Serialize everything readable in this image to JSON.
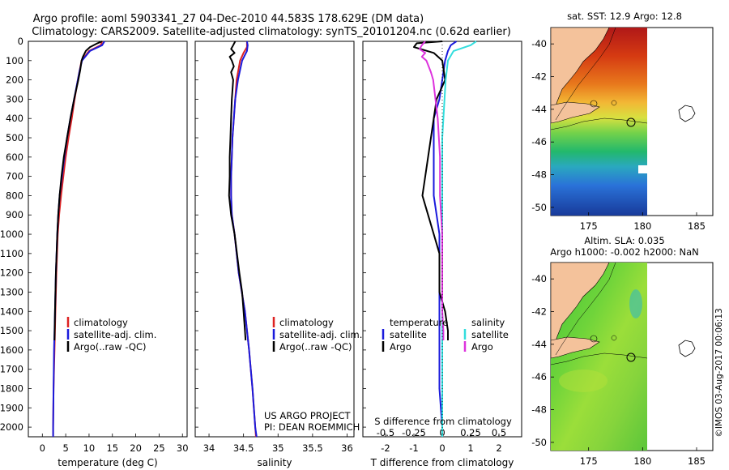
{
  "figure": {
    "title_line1": "Argo profile: aoml 5903341_27 04-Dec-2010 44.583S 178.629E (DM data)",
    "title_line2": "Climatology: CARS2009. Satellite-adjusted climatology: synTS_20101204.nc (0.62d earlier)",
    "project_line1": "US ARGO PROJECT",
    "project_line2": "PI: DEAN ROEMMICH",
    "credit": "©IMOS 03-Aug-2017 00:06:13"
  },
  "colors": {
    "climatology": "#dd2222",
    "satellite": "#1a1adc",
    "argo": "#000000",
    "temp_satellite": "#1a1adc",
    "sal_satellite": "#33dddd",
    "sal_argo": "#dd33dd",
    "land": "#f4c29b"
  },
  "chart_data": [
    {
      "type": "line",
      "id": "temperature",
      "xlabel": "temperature (deg C)",
      "ylabel": "",
      "xlim": [
        -3,
        31
      ],
      "ylim": [
        2050,
        0
      ],
      "xticks": [
        0,
        5,
        10,
        15,
        20,
        25,
        30
      ],
      "yticks": [
        0,
        100,
        200,
        300,
        400,
        500,
        600,
        700,
        800,
        900,
        1000,
        1100,
        1200,
        1300,
        1400,
        1500,
        1600,
        1700,
        1800,
        1900,
        2000
      ],
      "legend": [
        "climatology",
        "satellite-adj. clim.",
        "Argo(..raw -QC)"
      ],
      "series": [
        {
          "name": "climatology",
          "depth": [
            0,
            20,
            50,
            100,
            150,
            200,
            300,
            400,
            500,
            600,
            700,
            800,
            900,
            1000,
            1200,
            1400,
            1600,
            1800,
            2000,
            2050
          ],
          "values": [
            12.8,
            12.5,
            10.0,
            8.4,
            8.0,
            7.6,
            6.9,
            6.3,
            5.6,
            5.0,
            4.5,
            4.0,
            3.6,
            3.3,
            3.0,
            2.8,
            2.6,
            2.4,
            2.3,
            2.3
          ]
        },
        {
          "name": "satellite-adj. clim.",
          "depth": [
            0,
            20,
            50,
            100,
            150,
            200,
            300,
            400,
            500,
            600,
            700,
            800,
            900,
            1000,
            1200,
            1400,
            1600,
            1800,
            2000,
            2050
          ],
          "values": [
            13.3,
            12.8,
            10.2,
            8.5,
            8.0,
            7.6,
            6.8,
            6.0,
            5.3,
            4.7,
            4.2,
            3.7,
            3.4,
            3.2,
            2.9,
            2.7,
            2.5,
            2.4,
            2.3,
            2.3
          ]
        },
        {
          "name": "Argo(..raw -QC)",
          "depth": [
            0,
            10,
            30,
            50,
            80,
            100,
            150,
            200,
            300,
            400,
            500,
            600,
            700,
            800,
            900,
            1000,
            1200,
            1400,
            1550
          ],
          "values": [
            12.8,
            11.8,
            10.2,
            9.3,
            8.7,
            8.4,
            8.1,
            7.7,
            6.8,
            6.0,
            5.3,
            4.6,
            4.1,
            3.7,
            3.4,
            3.2,
            2.9,
            2.7,
            2.6
          ]
        }
      ]
    },
    {
      "type": "line",
      "id": "salinity",
      "xlabel": "salinity",
      "xlim": [
        33.8,
        36.1
      ],
      "ylim": [
        2050,
        0
      ],
      "xticks": [
        34,
        34.5,
        35,
        35.5,
        36
      ],
      "legend": [
        "climatology",
        "satellite-adj. clim.",
        "Argo(..raw -QC)"
      ],
      "series": [
        {
          "name": "climatology",
          "depth": [
            0,
            30,
            60,
            100,
            200,
            300,
            400,
            500,
            600,
            700,
            800,
            900,
            1000,
            1200,
            1400,
            1600,
            1800,
            2000,
            2050
          ],
          "values": [
            34.55,
            34.55,
            34.5,
            34.45,
            34.4,
            34.38,
            34.36,
            34.34,
            34.33,
            34.32,
            34.32,
            34.33,
            34.37,
            34.43,
            34.52,
            34.58,
            34.63,
            34.67,
            34.68
          ]
        },
        {
          "name": "satellite-adj. clim.",
          "depth": [
            0,
            20,
            50,
            100,
            200,
            300,
            400,
            500,
            600,
            700,
            800,
            900,
            1000,
            1200,
            1400,
            1600,
            1800,
            2000,
            2050
          ],
          "values": [
            34.55,
            34.56,
            34.55,
            34.48,
            34.42,
            34.38,
            34.36,
            34.34,
            34.33,
            34.32,
            34.32,
            34.33,
            34.37,
            34.43,
            34.52,
            34.58,
            34.63,
            34.67,
            34.69
          ]
        },
        {
          "name": "Argo(..raw -QC)",
          "depth": [
            0,
            20,
            40,
            60,
            80,
            100,
            130,
            160,
            200,
            300,
            400,
            500,
            600,
            700,
            800,
            900,
            1000,
            1200,
            1300,
            1400,
            1500,
            1550
          ],
          "values": [
            34.38,
            34.35,
            34.32,
            34.37,
            34.3,
            34.33,
            34.36,
            34.32,
            34.35,
            34.33,
            34.32,
            34.31,
            34.3,
            34.3,
            34.29,
            34.32,
            34.37,
            34.44,
            34.48,
            34.5,
            34.52,
            34.53
          ]
        }
      ]
    },
    {
      "type": "line",
      "id": "differences",
      "xlabel": "T difference from climatology",
      "xlabel_top": "S difference from climatology",
      "xlim": [
        -2.8,
        2.8
      ],
      "ylim": [
        2050,
        0
      ],
      "xticks_T": [
        -2,
        -1,
        0,
        1,
        2
      ],
      "xticks_S": [
        -0.5,
        -0.25,
        0,
        0.25,
        0.5
      ],
      "legend": {
        "temperature_header": "temperature",
        "salinity_header": "salinity",
        "items": [
          "satellite",
          "Argo",
          "satellite",
          "Argo"
        ]
      },
      "series": [
        {
          "name": "satellite",
          "group": "temperature",
          "depth": [
            0,
            20,
            50,
            100,
            200,
            300,
            400,
            500,
            600,
            700,
            800,
            900,
            1000,
            1200,
            1400,
            1600,
            1800,
            2000,
            2050
          ],
          "values": [
            0.5,
            0.3,
            0.2,
            0.1,
            0.0,
            -0.1,
            -0.3,
            -0.3,
            -0.3,
            -0.3,
            -0.3,
            -0.2,
            -0.1,
            -0.1,
            -0.1,
            -0.1,
            -0.1,
            0.0,
            0.0
          ]
        },
        {
          "name": "Argo",
          "group": "temperature",
          "depth": [
            0,
            10,
            30,
            60,
            100,
            200,
            300,
            400,
            500,
            600,
            700,
            800,
            900,
            1000,
            1100,
            1200,
            1300,
            1400,
            1500,
            1550
          ],
          "values": [
            0.0,
            -0.9,
            -1.0,
            -0.3,
            0.0,
            0.1,
            -0.2,
            -0.3,
            -0.4,
            -0.5,
            -0.6,
            -0.7,
            -0.5,
            -0.3,
            -0.1,
            -0.1,
            -0.1,
            0.1,
            0.2,
            0.2
          ]
        },
        {
          "name": "satellite",
          "group": "salinity",
          "depth": [
            0,
            20,
            50,
            100,
            200,
            300,
            400,
            500,
            600,
            700,
            800,
            900,
            1000,
            1200,
            1400,
            1600,
            1800,
            2000,
            2050
          ],
          "values": [
            0.3,
            0.25,
            0.1,
            0.05,
            0.03,
            0.02,
            0.01,
            0.0,
            0.0,
            0.0,
            0.0,
            0.0,
            0.0,
            0.0,
            0.0,
            0.0,
            0.0,
            0.0,
            0.0
          ]
        },
        {
          "name": "Argo",
          "group": "salinity",
          "depth": [
            0,
            20,
            40,
            60,
            80,
            100,
            130,
            160,
            200,
            300,
            400,
            500,
            600,
            700,
            800,
            900,
            1000,
            1200,
            1300,
            1400,
            1500,
            1550
          ],
          "values": [
            -0.15,
            -0.18,
            -0.2,
            -0.15,
            -0.18,
            -0.14,
            -0.12,
            -0.1,
            -0.08,
            -0.06,
            -0.04,
            -0.03,
            -0.02,
            -0.02,
            -0.02,
            -0.01,
            0.0,
            0.0,
            0.0,
            0.0,
            0.01,
            0.01
          ]
        }
      ]
    },
    {
      "type": "heatmap",
      "id": "sst-map",
      "title": "sat. SST: 12.9 Argo: 12.8",
      "xlim": [
        171.5,
        186.5
      ],
      "ylim": [
        -50.5,
        -39
      ],
      "xticks": [
        175,
        180,
        185
      ],
      "yticks": [
        -40,
        -42,
        -44,
        -46,
        -48,
        -50
      ],
      "float_position": [
        178.6,
        -44.6
      ]
    },
    {
      "type": "heatmap",
      "id": "sla-map",
      "title_line1": "Altim. SLA: 0.035",
      "title_line2": "Argo h1000: -0.002 h2000: NaN",
      "xlim": [
        171.5,
        186.5
      ],
      "ylim": [
        -50.5,
        -39
      ],
      "xticks": [
        175,
        180,
        185
      ],
      "yticks": [
        -40,
        -42,
        -44,
        -46,
        -48,
        -50
      ],
      "float_position": [
        178.6,
        -44.6
      ]
    }
  ]
}
